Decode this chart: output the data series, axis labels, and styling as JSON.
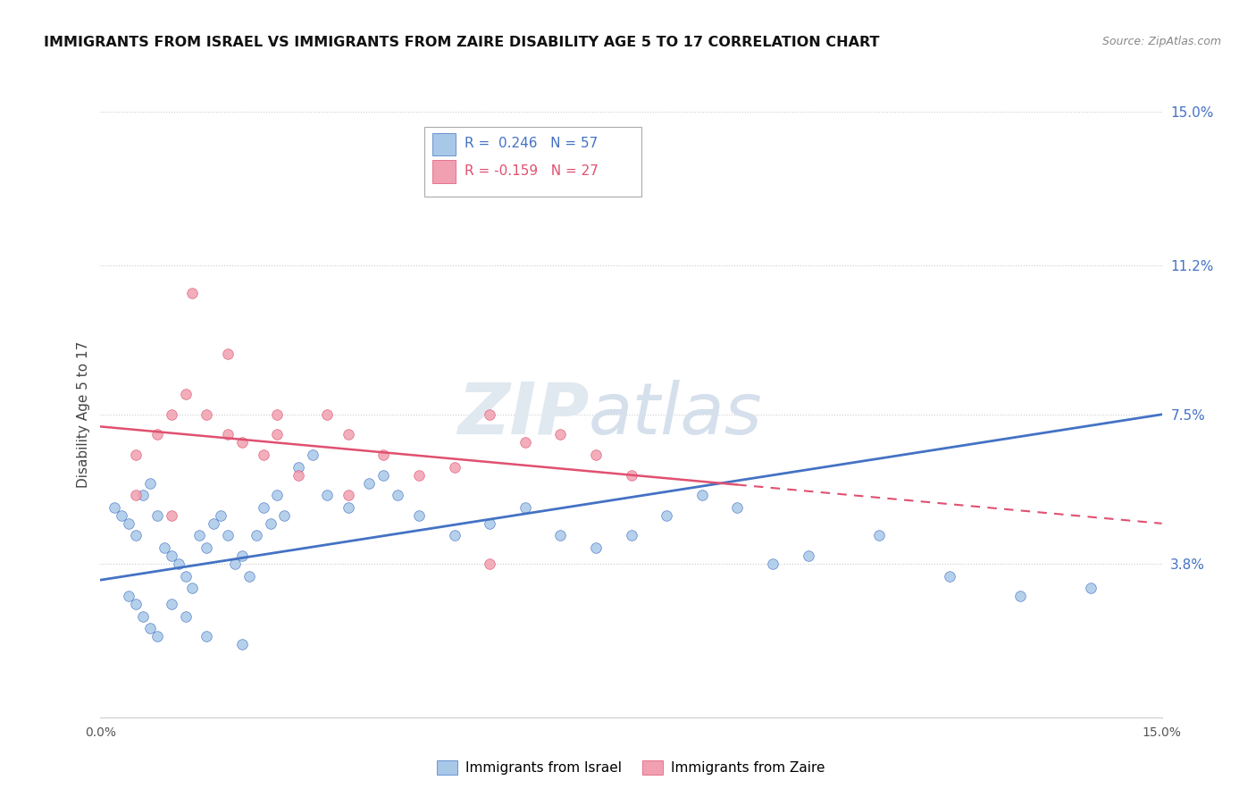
{
  "title": "IMMIGRANTS FROM ISRAEL VS IMMIGRANTS FROM ZAIRE DISABILITY AGE 5 TO 17 CORRELATION CHART",
  "source": "Source: ZipAtlas.com",
  "ylabel": "Disability Age 5 to 17",
  "x_min": 0.0,
  "x_max": 15.0,
  "y_min": 0.0,
  "y_max": 15.0,
  "y_ticks": [
    3.8,
    7.5,
    11.2,
    15.0
  ],
  "legend_r1": "R =  0.246",
  "legend_n1": "N = 57",
  "legend_r2": "R = -0.159",
  "legend_n2": "N = 27",
  "color_israel": "#A8C8E8",
  "color_zaire": "#F0A0B0",
  "color_line_israel": "#4472C4",
  "color_line_zaire": "#E05070",
  "israel_line_y0": 3.4,
  "israel_line_y1": 7.5,
  "zaire_line_y0": 7.2,
  "zaire_line_y1": 4.8,
  "zaire_solid_x_end": 9.0,
  "israel_x": [
    0.2,
    0.3,
    0.4,
    0.5,
    0.6,
    0.7,
    0.8,
    0.9,
    1.0,
    1.1,
    1.2,
    1.3,
    1.4,
    1.5,
    1.6,
    1.7,
    1.8,
    1.9,
    2.0,
    2.1,
    2.2,
    2.3,
    2.4,
    2.5,
    2.6,
    2.8,
    3.0,
    3.2,
    3.5,
    3.8,
    4.0,
    4.2,
    4.5,
    5.0,
    5.5,
    6.0,
    6.5,
    7.0,
    7.5,
    8.0,
    8.5,
    9.0,
    9.5,
    10.0,
    11.0,
    12.0,
    13.0,
    14.0,
    0.4,
    0.5,
    0.6,
    0.7,
    0.8,
    1.0,
    1.2,
    1.5,
    2.0
  ],
  "israel_y": [
    5.2,
    5.0,
    4.8,
    4.5,
    5.5,
    5.8,
    5.0,
    4.2,
    4.0,
    3.8,
    3.5,
    3.2,
    4.5,
    4.2,
    4.8,
    5.0,
    4.5,
    3.8,
    4.0,
    3.5,
    4.5,
    5.2,
    4.8,
    5.5,
    5.0,
    6.2,
    6.5,
    5.5,
    5.2,
    5.8,
    6.0,
    5.5,
    5.0,
    4.5,
    4.8,
    5.2,
    4.5,
    4.2,
    4.5,
    5.0,
    5.5,
    5.2,
    3.8,
    4.0,
    4.5,
    3.5,
    3.0,
    3.2,
    3.0,
    2.8,
    2.5,
    2.2,
    2.0,
    2.8,
    2.5,
    2.0,
    1.8
  ],
  "zaire_x": [
    0.5,
    0.8,
    1.0,
    1.2,
    1.5,
    1.8,
    2.0,
    2.3,
    2.5,
    2.8,
    3.2,
    3.5,
    4.0,
    4.5,
    5.0,
    5.5,
    6.0,
    6.5,
    7.0,
    7.5,
    0.5,
    1.0,
    1.3,
    1.8,
    2.5,
    3.5,
    5.5
  ],
  "zaire_y": [
    6.5,
    7.0,
    7.5,
    8.0,
    7.5,
    7.0,
    6.8,
    6.5,
    7.0,
    6.0,
    7.5,
    7.0,
    6.5,
    6.0,
    6.2,
    7.5,
    6.8,
    7.0,
    6.5,
    6.0,
    5.5,
    5.0,
    10.5,
    9.0,
    7.5,
    5.5,
    3.8
  ]
}
